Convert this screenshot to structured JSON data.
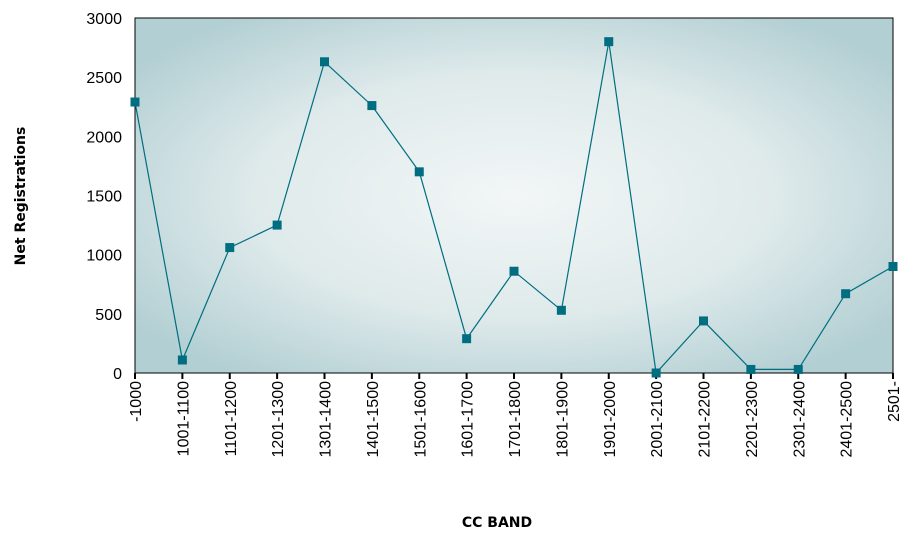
{
  "chart_data": {
    "type": "line",
    "xlabel": "CC BAND",
    "ylabel": "Net Registrations",
    "ylim": [
      0,
      3000
    ],
    "yticks": [
      "0",
      "500",
      "1000",
      "1500",
      "2000",
      "2500",
      "3000"
    ],
    "categories": [
      "-1000",
      "1001-1100",
      "1101-1200",
      "1201-1300",
      "1301-1400",
      "1401-1500",
      "1501-1600",
      "1601-1700",
      "1701-1800",
      "1801-1900",
      "1901-2000",
      "2001-2100",
      "2101-2200",
      "2201-2300",
      "2301-2400",
      "2401-2500",
      "2501-"
    ],
    "series": [
      {
        "values": [
          2290,
          110,
          1060,
          1250,
          2630,
          2260,
          1700,
          290,
          860,
          530,
          2800,
          0,
          440,
          30,
          30,
          670,
          900
        ],
        "color": "#006e80"
      }
    ],
    "grid": false,
    "legend": "none",
    "plot_background": "#c5dcdf"
  }
}
